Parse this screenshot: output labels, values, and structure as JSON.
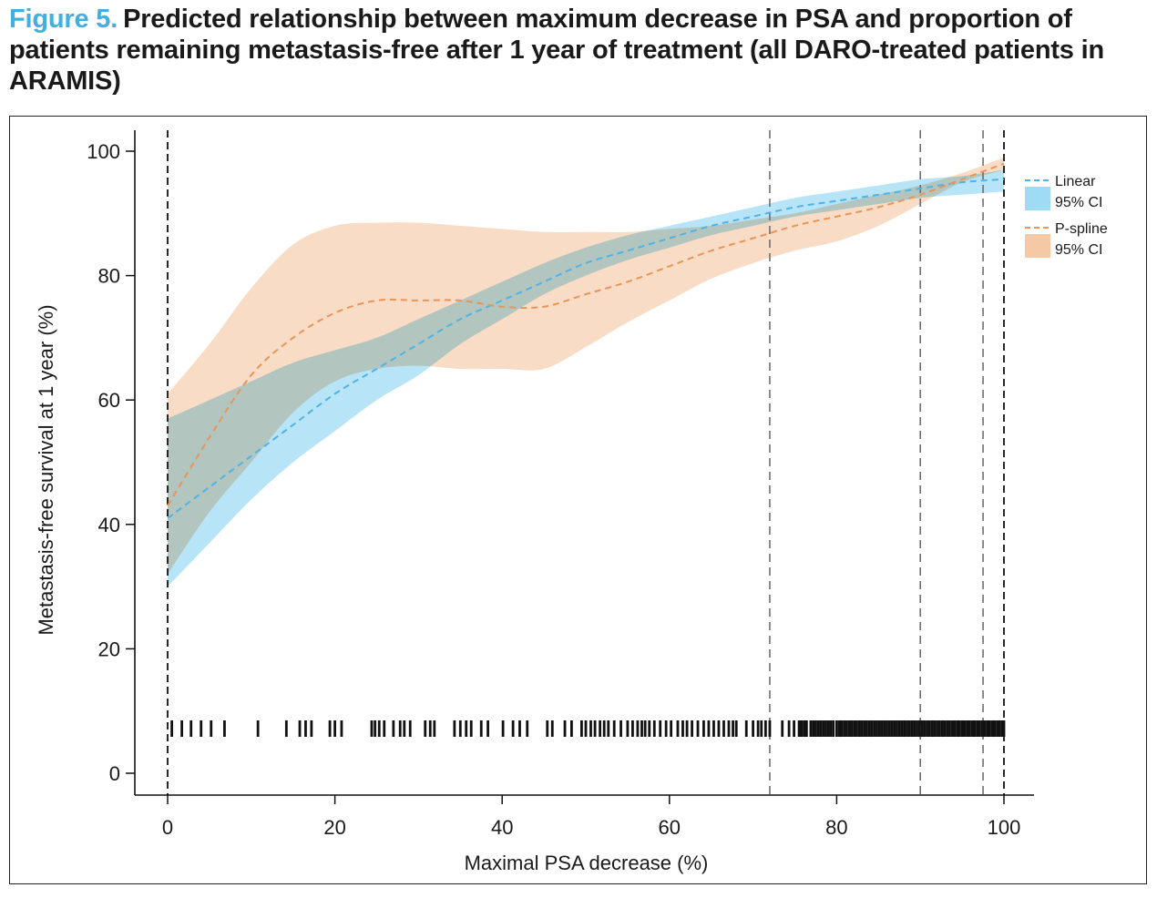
{
  "figure": {
    "label": "Figure 5.",
    "title": "Predicted relationship between maximum decrease in PSA and proportion of patients remaining metastasis-free after 1 year of treatment (all DARO-treated patients in ARAMIS)"
  },
  "colors": {
    "linear_line": "#4fb3e6",
    "linear_ci": "#9fdcf4",
    "pspline_line": "#e8955a",
    "pspline_ci": "#f6c9a6",
    "caption_accent": "#3fb0e0"
  },
  "chart_data": {
    "type": "line",
    "xlabel": "Maximal PSA decrease (%)",
    "ylabel": "Metastasis-free survival at 1 year (%)",
    "xlim": [
      0,
      100
    ],
    "ylim": [
      0,
      100
    ],
    "xticks": [
      "0",
      "20",
      "40",
      "60",
      "80",
      "100"
    ],
    "yticks": [
      "0",
      "20",
      "40",
      "60",
      "80",
      "100"
    ],
    "grid": false,
    "legend_position": "top-right",
    "x": [
      0,
      5,
      10,
      15,
      20,
      25,
      30,
      35,
      40,
      45,
      50,
      55,
      60,
      65,
      70,
      75,
      80,
      85,
      90,
      95,
      100
    ],
    "series": [
      {
        "name": "Linear",
        "style": "dashed",
        "values": [
          41,
          46,
          51,
          56,
          61,
          65,
          69,
          73,
          76,
          79,
          82,
          84,
          86,
          88,
          89.5,
          91,
          92,
          93,
          94,
          95,
          95.5
        ],
        "ci_label": "95% CI",
        "ci_lower": [
          30,
          37,
          44,
          50,
          55,
          60,
          64,
          69,
          73,
          77,
          80,
          82.5,
          84.5,
          86.5,
          88,
          89.5,
          90.5,
          91.5,
          92.5,
          93,
          93.5
        ],
        "ci_upper": [
          57,
          60,
          63,
          66,
          68,
          70,
          73,
          76,
          79,
          82,
          84.5,
          86.5,
          88,
          89.5,
          91,
          92.5,
          93.5,
          94.5,
          95.5,
          96,
          97
        ]
      },
      {
        "name": "P-spline",
        "style": "dashed",
        "values": [
          43,
          54,
          64,
          70,
          74,
          76,
          76,
          76,
          75,
          75,
          77,
          79,
          81.5,
          84,
          86,
          88,
          89.5,
          91,
          93,
          95.5,
          98
        ],
        "ci_label": "95% CI",
        "ci_lower": [
          32,
          42,
          50,
          58,
          63,
          65,
          65.5,
          65,
          65,
          65,
          68.5,
          72.5,
          76,
          79.5,
          82,
          84,
          85.5,
          88,
          91.5,
          95,
          97
        ],
        "ci_upper": [
          61,
          69,
          78,
          85,
          88,
          88.5,
          88.5,
          88,
          87.5,
          87,
          87,
          87,
          87.5,
          88,
          89,
          90,
          91.5,
          93,
          94.5,
          96.5,
          99
        ]
      }
    ],
    "reference_lines_x": [
      0,
      72,
      90,
      97.5,
      100
    ],
    "rug_x": [
      0.5,
      1.7,
      2.8,
      4,
      5.2,
      6.8,
      10.8,
      14.2,
      15.8,
      16.5,
      17.2,
      19.4,
      20,
      20.8,
      24.4,
      24.8,
      25.3,
      25.9,
      27,
      27.8,
      28.3,
      29,
      30.8,
      31.4,
      31.9,
      34.3,
      35,
      35.7,
      36.3,
      37.5,
      38.3,
      40.1,
      41.3,
      42.1,
      43,
      45.4,
      46,
      47.5,
      48.3,
      49.5,
      50,
      50.6,
      51.1,
      51.7,
      52.2,
      52.7,
      53.4,
      54.2,
      55,
      55.6,
      56.2,
      56.7,
      57.1,
      57.6,
      58.2,
      58.9,
      59.6,
      60.2,
      61,
      61.6,
      62.1,
      62.7,
      63.4,
      64.1,
      64.7,
      65.3,
      65.9,
      66.5,
      67.1,
      67.6,
      68,
      69.2,
      70,
      70.6,
      71,
      71.5,
      72,
      73.5,
      74.3,
      74.9,
      75.5,
      75.8,
      76.1,
      76.4,
      76.9,
      77.2,
      77.5,
      77.8,
      78.1,
      78.4,
      78.7,
      79,
      79.3,
      79.6,
      80,
      80.3,
      80.6,
      80.9,
      81.2,
      81.5,
      81.8,
      82.1,
      82.4,
      82.7,
      83,
      83.3,
      83.6,
      83.9,
      84.2,
      84.5,
      84.8,
      85.1,
      85.4,
      85.7,
      86,
      86.3,
      86.6,
      86.9,
      87.2,
      87.5,
      87.8,
      88.1,
      88.4,
      88.7,
      89,
      89.3,
      89.6,
      89.9,
      90.2,
      90.5,
      90.8,
      91.1,
      91.4,
      91.7,
      92,
      92.3,
      92.6,
      92.9,
      93.2,
      93.5,
      93.8,
      94.1,
      94.4,
      94.7,
      95,
      95.3,
      95.6,
      95.9,
      96.2,
      96.5,
      96.8,
      97.1,
      97.4,
      97.7,
      98,
      98.3,
      98.6,
      98.9,
      99.2,
      99.5,
      99.8,
      100
    ]
  }
}
